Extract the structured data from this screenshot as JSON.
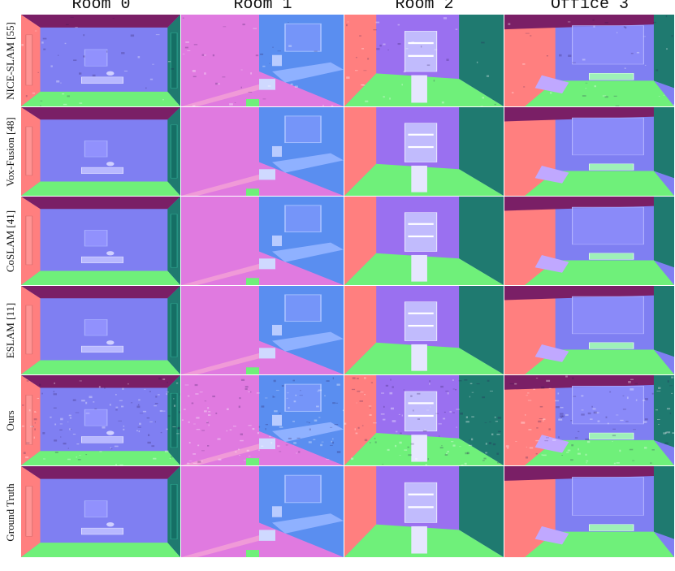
{
  "columns": [
    "Room 0",
    "Room 1",
    "Room 2",
    "Office 3"
  ],
  "rows": [
    {
      "method": "NICE-SLAM",
      "ref": "[55]"
    },
    {
      "method": "Vox-Fusion",
      "ref": "[48]"
    },
    {
      "method": "CoSLAM",
      "ref": "[41]"
    },
    {
      "method": "ESLAM",
      "ref": "[11]"
    },
    {
      "method": "Ours",
      "ref": ""
    },
    {
      "method": "Ground Truth",
      "ref": ""
    }
  ],
  "colors": {
    "ceiling": "#7a1f66",
    "floor": "#6ff07a",
    "wall_blue": "#7f7ff2",
    "wall_red": "#ff7f7f",
    "wall_teal": "#1f7a70",
    "wall_pink": "#e07ae0",
    "wall_light_blue": "#5a8ef0",
    "wall_violet": "#9a70f0",
    "reference_link": "#3b73c8"
  }
}
